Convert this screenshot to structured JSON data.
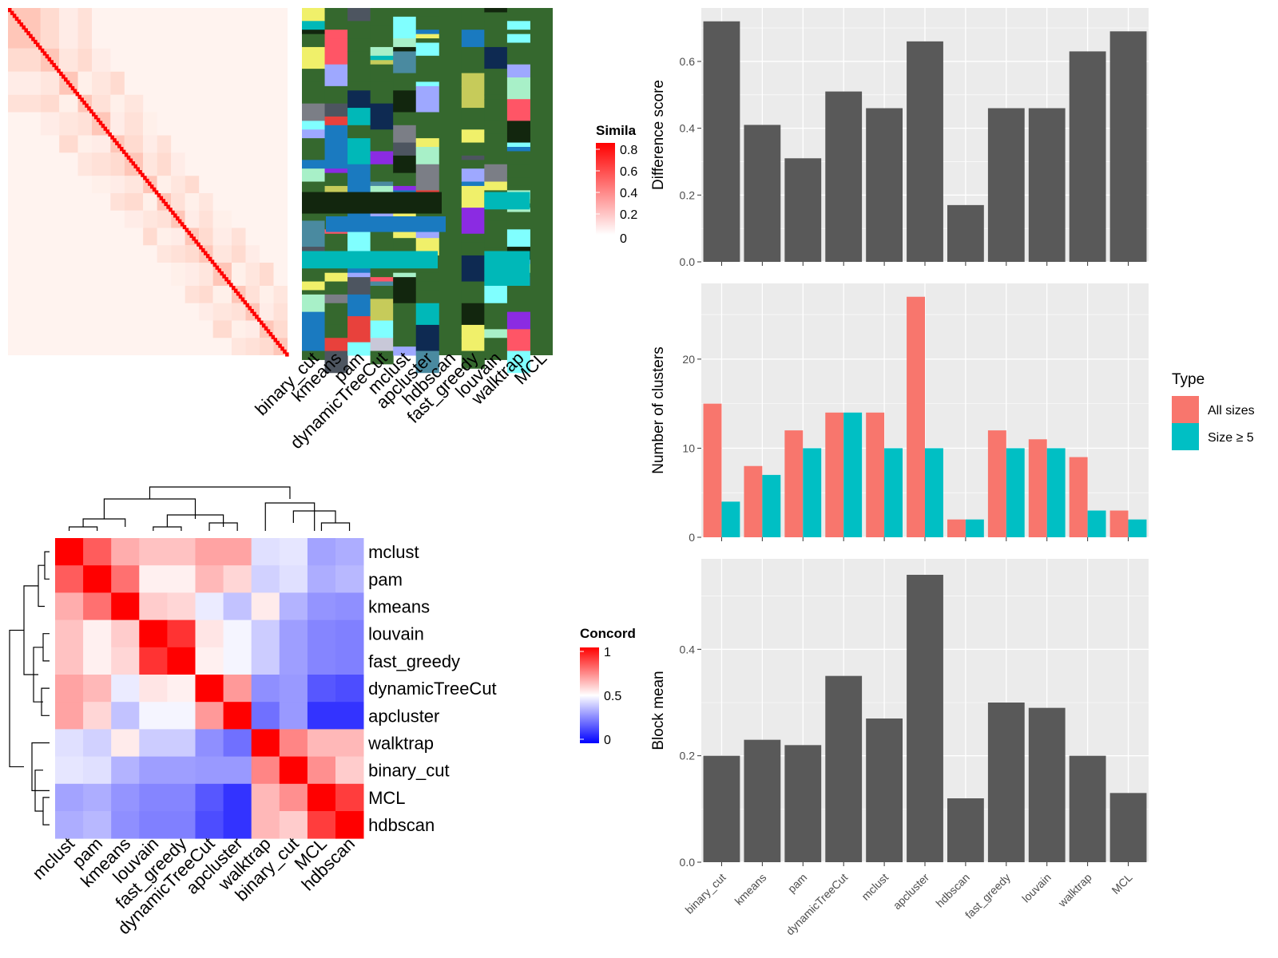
{
  "chart_data": [
    {
      "panel": "similarity-heatmap",
      "type": "heatmap",
      "title": "",
      "column_labels": [
        "binary_cut",
        "kmeans",
        "pam",
        "dynamicTreeCut",
        "mclust",
        "apcluster",
        "hdbscan",
        "fast_greedy",
        "louvain",
        "walktrap",
        "MCL"
      ],
      "legend": {
        "title": "Simila",
        "ticks": [
          "0.8",
          "0.6",
          "0.4",
          "0.2",
          "0"
        ],
        "colors": [
          "#ffffff",
          "#ff0000"
        ]
      }
    },
    {
      "panel": "concordance-heatmap",
      "type": "heatmap",
      "row_labels": [
        "mclust",
        "pam",
        "kmeans",
        "louvain",
        "fast_greedy",
        "dynamicTreeCut",
        "apcluster",
        "walktrap",
        "binary_cut",
        "MCL",
        "hdbscan"
      ],
      "column_labels": [
        "mclust",
        "pam",
        "kmeans",
        "louvain",
        "fast_greedy",
        "dynamicTreeCut",
        "apcluster",
        "walktrap",
        "binary_cut",
        "MCL",
        "hdbscan"
      ],
      "values": [
        [
          1.0,
          0.82,
          0.66,
          0.62,
          0.62,
          0.68,
          0.68,
          0.44,
          0.45,
          0.32,
          0.34
        ],
        [
          0.82,
          1.0,
          0.78,
          0.53,
          0.53,
          0.64,
          0.58,
          0.41,
          0.44,
          0.34,
          0.36
        ],
        [
          0.66,
          0.78,
          1.0,
          0.6,
          0.58,
          0.46,
          0.38,
          0.54,
          0.35,
          0.29,
          0.28
        ],
        [
          0.62,
          0.53,
          0.6,
          1.0,
          0.9,
          0.55,
          0.48,
          0.4,
          0.31,
          0.26,
          0.25
        ],
        [
          0.62,
          0.53,
          0.58,
          0.9,
          1.0,
          0.53,
          0.48,
          0.4,
          0.31,
          0.26,
          0.25
        ],
        [
          0.68,
          0.64,
          0.46,
          0.55,
          0.53,
          1.0,
          0.7,
          0.28,
          0.3,
          0.17,
          0.15
        ],
        [
          0.68,
          0.58,
          0.38,
          0.48,
          0.48,
          0.7,
          1.0,
          0.22,
          0.3,
          0.1,
          0.1
        ],
        [
          0.44,
          0.41,
          0.54,
          0.4,
          0.4,
          0.28,
          0.22,
          1.0,
          0.74,
          0.64,
          0.64
        ],
        [
          0.45,
          0.44,
          0.35,
          0.31,
          0.31,
          0.3,
          0.3,
          0.74,
          1.0,
          0.72,
          0.6
        ],
        [
          0.32,
          0.34,
          0.29,
          0.26,
          0.26,
          0.17,
          0.1,
          0.64,
          0.72,
          1.0,
          0.88
        ],
        [
          0.34,
          0.36,
          0.28,
          0.25,
          0.25,
          0.15,
          0.1,
          0.64,
          0.6,
          0.88,
          1.0
        ]
      ],
      "legend": {
        "title": "Concord",
        "ticks": [
          "1",
          "0.5",
          "0"
        ],
        "colors": [
          "#0000ff",
          "#ffffff",
          "#ff0000"
        ]
      },
      "zlim": [
        0,
        1
      ]
    },
    {
      "panel": "difference-score",
      "type": "bar",
      "categories": [
        "binary_cut",
        "kmeans",
        "pam",
        "dynamicTreeCut",
        "mclust",
        "apcluster",
        "hdbscan",
        "fast_greedy",
        "louvain",
        "walktrap",
        "MCL"
      ],
      "values": [
        0.72,
        0.41,
        0.31,
        0.51,
        0.46,
        0.66,
        0.17,
        0.46,
        0.46,
        0.63,
        0.69
      ],
      "ylabel": "Difference score",
      "ylim": [
        0,
        0.76
      ],
      "yticks": [
        "0.0",
        "0.2",
        "0.4",
        "0.6"
      ],
      "grid": true,
      "show_x_labels": false
    },
    {
      "panel": "number-of-clusters",
      "type": "bar",
      "categories": [
        "binary_cut",
        "kmeans",
        "pam",
        "dynamicTreeCut",
        "mclust",
        "apcluster",
        "hdbscan",
        "fast_greedy",
        "louvain",
        "walktrap",
        "MCL"
      ],
      "series": [
        {
          "name": "All sizes",
          "values": [
            15,
            8,
            12,
            14,
            14,
            27,
            2,
            12,
            11,
            9,
            3
          ]
        },
        {
          "name": "Size ≥ 5",
          "values": [
            4,
            7,
            10,
            14,
            10,
            10,
            2,
            10,
            10,
            3,
            2
          ]
        }
      ],
      "ylabel": "Number of clusters",
      "ylim": [
        0,
        28.5
      ],
      "yticks": [
        "0",
        "10",
        "20"
      ],
      "legend": {
        "title": "Type",
        "position": "right"
      },
      "grid": true,
      "show_x_labels": false
    },
    {
      "panel": "block-mean",
      "type": "bar",
      "categories": [
        "binary_cut",
        "kmeans",
        "pam",
        "dynamicTreeCut",
        "mclust",
        "apcluster",
        "hdbscan",
        "fast_greedy",
        "louvain",
        "walktrap",
        "MCL"
      ],
      "values": [
        0.2,
        0.23,
        0.22,
        0.35,
        0.27,
        0.54,
        0.12,
        0.3,
        0.29,
        0.2,
        0.13
      ],
      "ylabel": "Block mean",
      "ylim": [
        0,
        0.57
      ],
      "yticks": [
        "0.0",
        "0.2",
        "0.4"
      ],
      "grid": true,
      "show_x_labels": true
    }
  ],
  "colors": {
    "bar": "#595959",
    "panel_bg": "#ebebeb",
    "all_sizes": "#f8766d",
    "size_ge_5": "#00bfc4"
  }
}
